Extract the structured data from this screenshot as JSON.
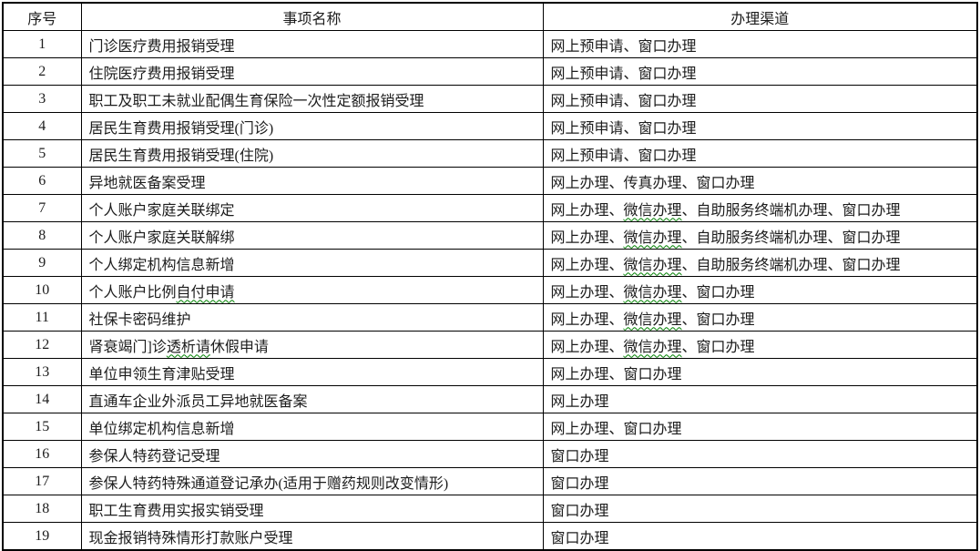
{
  "table": {
    "headers": [
      "序号",
      "事项名称",
      "办理渠道"
    ],
    "rows": [
      {
        "no": "1",
        "name": [
          {
            "text": "门诊医疗费用报销受理"
          }
        ],
        "channel": [
          {
            "text": "网上预申请、窗口办理"
          }
        ]
      },
      {
        "no": "2",
        "name": [
          {
            "text": "住院医疗费用报销受理"
          }
        ],
        "channel": [
          {
            "text": "网上预申请、窗口办理"
          }
        ]
      },
      {
        "no": "3",
        "name": [
          {
            "text": "职工及职工未就业配偶生育保险一次性定额报销受理"
          }
        ],
        "channel": [
          {
            "text": "网上预申请、窗口办理"
          }
        ]
      },
      {
        "no": "4",
        "name": [
          {
            "text": "居民生育费用报销受理(门诊)"
          }
        ],
        "channel": [
          {
            "text": "网上预申请、窗口办理"
          }
        ]
      },
      {
        "no": "5",
        "name": [
          {
            "text": "居民生育费用报销受理(住院)"
          }
        ],
        "channel": [
          {
            "text": "网上预申请、窗口办理"
          }
        ]
      },
      {
        "no": "6",
        "name": [
          {
            "text": "异地就医备案受理"
          }
        ],
        "channel": [
          {
            "text": "网上办理、传真办理、窗口办理"
          }
        ]
      },
      {
        "no": "7",
        "name": [
          {
            "text": "个人账户家庭关联绑定"
          }
        ],
        "channel": [
          {
            "text": "网上办理、"
          },
          {
            "text": "微信办理",
            "squiggle": true
          },
          {
            "text": "、自助服务终端机办理、窗口办理"
          }
        ]
      },
      {
        "no": "8",
        "name": [
          {
            "text": "个人账户家庭关联解绑"
          }
        ],
        "channel": [
          {
            "text": "网上办理、"
          },
          {
            "text": "微信办理",
            "squiggle": true
          },
          {
            "text": "、自助服务终端机办理、窗口办理"
          }
        ]
      },
      {
        "no": "9",
        "name": [
          {
            "text": "个人绑定机构信息新增"
          }
        ],
        "channel": [
          {
            "text": "网上办理、"
          },
          {
            "text": "微信办理",
            "squiggle": true
          },
          {
            "text": "、自助服务终端机办理、窗口办理"
          }
        ]
      },
      {
        "no": "10",
        "name": [
          {
            "text": "个人账户比例"
          },
          {
            "text": "自付申请",
            "squiggle": true
          }
        ],
        "channel": [
          {
            "text": "网上办理、"
          },
          {
            "text": "微信办理",
            "squiggle": true
          },
          {
            "text": "、窗口办理"
          }
        ]
      },
      {
        "no": "11",
        "name": [
          {
            "text": "社保卡密码维护"
          }
        ],
        "channel": [
          {
            "text": "网上办理、"
          },
          {
            "text": "微信办理",
            "squiggle": true
          },
          {
            "text": "、窗口办理"
          }
        ]
      },
      {
        "no": "12",
        "name": [
          {
            "text": "肾衰竭门]诊"
          },
          {
            "text": "透析请",
            "squiggle": true
          },
          {
            "text": "休假申请"
          }
        ],
        "channel": [
          {
            "text": "网上办理、"
          },
          {
            "text": "微信办理",
            "squiggle": true
          },
          {
            "text": "、窗口办理"
          }
        ]
      },
      {
        "no": "13",
        "name": [
          {
            "text": "单位申领生育津贴受理"
          }
        ],
        "channel": [
          {
            "text": "网上办理、窗口办理"
          }
        ]
      },
      {
        "no": "14",
        "name": [
          {
            "text": "直通车企业外派员工异地就医备案"
          }
        ],
        "channel": [
          {
            "text": "网上办理"
          }
        ]
      },
      {
        "no": "15",
        "name": [
          {
            "text": "单位绑定机构信息新增"
          }
        ],
        "channel": [
          {
            "text": "网上办理、窗口办理"
          }
        ]
      },
      {
        "no": "16",
        "name": [
          {
            "text": "参保人特药登记受理"
          }
        ],
        "channel": [
          {
            "text": "窗口办理"
          }
        ]
      },
      {
        "no": "17",
        "name": [
          {
            "text": "参保人特药特殊通道登记承办(适用于赠药规则改变情形)"
          }
        ],
        "channel": [
          {
            "text": "窗口办理"
          }
        ]
      },
      {
        "no": "18",
        "name": [
          {
            "text": "职工生育费用实报实销受理"
          }
        ],
        "channel": [
          {
            "text": "窗口办理"
          }
        ]
      },
      {
        "no": "19",
        "name": [
          {
            "text": "现金报销特殊情形打款账户受理"
          }
        ],
        "channel": [
          {
            "text": "窗口办理"
          }
        ]
      }
    ],
    "squiggle_color": "#008000",
    "border_color": "#000000",
    "text_color": "#1c1c1c"
  }
}
